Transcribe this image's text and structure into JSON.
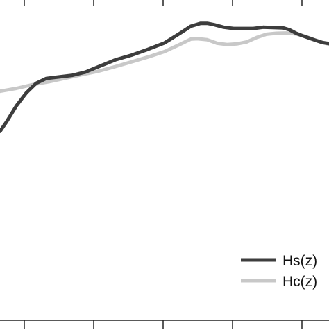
{
  "chart_data": {
    "type": "line",
    "title": "",
    "xlabel": "",
    "ylabel": "",
    "grid": false,
    "legend_placement": "bottom-right",
    "xlim": [
      0,
      100
    ],
    "ylim": [
      0,
      100
    ],
    "series": [
      {
        "name": "Hs(z)",
        "color": "#3d3d3d",
        "x": [
          0,
          2,
          5,
          8,
          11,
          14,
          18,
          22,
          26,
          30,
          35,
          40,
          45,
          50,
          55,
          58,
          61,
          63,
          65,
          68,
          71,
          74,
          77,
          80,
          83,
          86,
          88,
          90,
          92,
          94,
          96,
          98,
          100
        ],
        "y": [
          59,
          62,
          67,
          71,
          74,
          75.5,
          76,
          76.5,
          77.5,
          79.2,
          81.3,
          82.8,
          84.6,
          86.6,
          89.8,
          91.8,
          92.7,
          92.7,
          92.3,
          91.5,
          91.1,
          91.1,
          91.1,
          91.5,
          91.4,
          91.3,
          90.7,
          89.6,
          88.8,
          88.1,
          87.4,
          86.7,
          86.4
        ]
      },
      {
        "name": "Hc(z)",
        "color": "#c8c8c8",
        "x": [
          0,
          5,
          10,
          15,
          20,
          25,
          30,
          35,
          40,
          45,
          50,
          55,
          58,
          60,
          63,
          66,
          69,
          72,
          75,
          78,
          81,
          84,
          87,
          90,
          93,
          96,
          100
        ],
        "y": [
          71.5,
          72.4,
          73.6,
          74.5,
          75.6,
          76.7,
          77.8,
          79.2,
          80.7,
          82.2,
          83.9,
          86.3,
          87.8,
          87.9,
          87.6,
          86.5,
          86.1,
          86.3,
          86.9,
          88.3,
          89.3,
          89.6,
          89.7,
          89.4,
          88.6,
          87.4,
          86.2
        ]
      }
    ]
  }
}
